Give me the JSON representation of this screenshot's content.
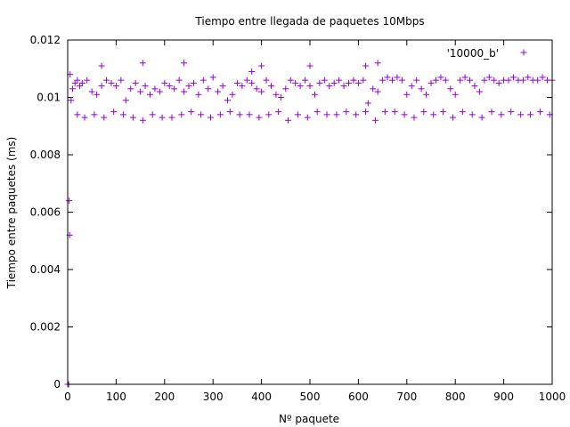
{
  "chart_data": {
    "type": "scatter",
    "title": "Tiempo entre llegada de paquetes 10Mbps",
    "xlabel": "Nº paquete",
    "ylabel": "Tiempo entre paquetes (ms)",
    "xlim": [
      0,
      1000
    ],
    "ylim": [
      0,
      0.012
    ],
    "xticks": [
      0,
      100,
      200,
      300,
      400,
      500,
      600,
      700,
      800,
      900,
      1000
    ],
    "yticks": [
      0,
      0.002,
      0.004,
      0.006,
      0.008,
      0.01,
      0.012
    ],
    "ytick_labels": [
      "0",
      "0.002",
      "0.004",
      "0.006",
      "0.008",
      "0.01",
      "0.012"
    ],
    "grid": false,
    "legend_position": "top-right",
    "series": [
      {
        "name": "'10000_b'",
        "color": "#9400d3",
        "marker": "plus",
        "x": [
          0,
          1,
          2,
          3,
          4,
          5,
          7,
          10,
          15,
          20,
          25,
          30,
          40,
          50,
          60,
          70,
          80,
          90,
          100,
          110,
          120,
          130,
          140,
          150,
          160,
          170,
          180,
          190,
          200,
          210,
          220,
          230,
          240,
          250,
          260,
          270,
          280,
          290,
          300,
          310,
          320,
          330,
          340,
          350,
          360,
          370,
          380,
          390,
          400,
          410,
          420,
          430,
          440,
          450,
          460,
          470,
          480,
          490,
          500,
          510,
          520,
          530,
          540,
          550,
          560,
          570,
          580,
          590,
          600,
          610,
          620,
          630,
          640,
          650,
          660,
          670,
          680,
          690,
          700,
          710,
          720,
          730,
          740,
          750,
          760,
          770,
          780,
          790,
          800,
          810,
          820,
          830,
          840,
          850,
          860,
          870,
          880,
          890,
          900,
          910,
          920,
          930,
          940,
          950,
          960,
          970,
          980,
          990,
          1000,
          20,
          35,
          55,
          75,
          95,
          115,
          135,
          155,
          175,
          195,
          215,
          235,
          255,
          275,
          295,
          315,
          335,
          355,
          375,
          395,
          415,
          435,
          455,
          475,
          495,
          515,
          535,
          555,
          575,
          595,
          615,
          635,
          655,
          675,
          695,
          715,
          735,
          755,
          775,
          795,
          815,
          835,
          855,
          875,
          895,
          915,
          935,
          955,
          975,
          995,
          70,
          155,
          240,
          380,
          400,
          500,
          615,
          640
        ],
        "y": [
          0.0,
          0.0,
          0.0,
          0.0064,
          0.0052,
          0.0108,
          0.0099,
          0.0103,
          0.0105,
          0.0106,
          0.0104,
          0.0105,
          0.0106,
          0.0102,
          0.0101,
          0.0104,
          0.0106,
          0.0105,
          0.0104,
          0.0106,
          0.0099,
          0.0103,
          0.0105,
          0.0102,
          0.0104,
          0.0101,
          0.0103,
          0.0102,
          0.0105,
          0.0104,
          0.0103,
          0.0106,
          0.0102,
          0.0104,
          0.0105,
          0.0101,
          0.0106,
          0.0103,
          0.0107,
          0.0102,
          0.0104,
          0.0099,
          0.0101,
          0.0105,
          0.0104,
          0.0106,
          0.0105,
          0.0103,
          0.0102,
          0.0106,
          0.0104,
          0.0101,
          0.01,
          0.0103,
          0.0106,
          0.0105,
          0.0104,
          0.0106,
          0.0104,
          0.0101,
          0.0105,
          0.0106,
          0.0104,
          0.0105,
          0.0106,
          0.0104,
          0.0105,
          0.0106,
          0.0105,
          0.0106,
          0.0098,
          0.0103,
          0.0102,
          0.0106,
          0.0107,
          0.0106,
          0.0107,
          0.0106,
          0.0101,
          0.0104,
          0.0106,
          0.0103,
          0.0101,
          0.0105,
          0.0106,
          0.0107,
          0.0106,
          0.0103,
          0.0101,
          0.0106,
          0.0107,
          0.0106,
          0.0104,
          0.0102,
          0.0106,
          0.0107,
          0.0106,
          0.0105,
          0.0106,
          0.0106,
          0.0107,
          0.0106,
          0.0106,
          0.0107,
          0.0106,
          0.0106,
          0.0107,
          0.0106,
          0.0106,
          0.0094,
          0.0093,
          0.0094,
          0.0093,
          0.0095,
          0.0094,
          0.0093,
          0.0092,
          0.0094,
          0.0093,
          0.0093,
          0.0094,
          0.0095,
          0.0094,
          0.0093,
          0.0094,
          0.0095,
          0.0094,
          0.0094,
          0.0093,
          0.0094,
          0.0095,
          0.0092,
          0.0094,
          0.0093,
          0.0095,
          0.0094,
          0.0094,
          0.0095,
          0.0094,
          0.0095,
          0.0092,
          0.0095,
          0.0095,
          0.0094,
          0.0093,
          0.0095,
          0.0094,
          0.0095,
          0.0093,
          0.0095,
          0.0094,
          0.0093,
          0.0095,
          0.0094,
          0.0095,
          0.0094,
          0.0094,
          0.0095,
          0.0094,
          0.0111,
          0.0112,
          0.0112,
          0.0109,
          0.0111,
          0.0111,
          0.0111,
          0.0112
        ]
      }
    ]
  }
}
